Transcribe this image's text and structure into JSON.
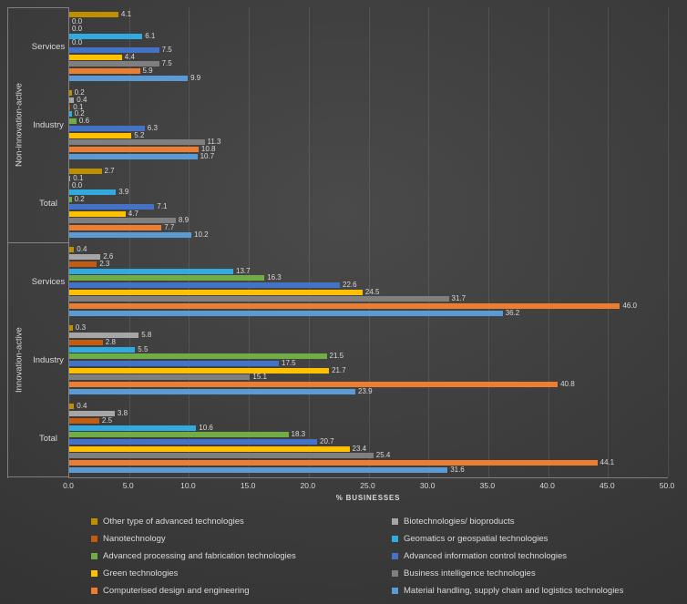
{
  "window": {
    "background": "#3b3b3b",
    "text_color": "#d9d9d9"
  },
  "chart_data": {
    "type": "bar",
    "orientation": "horizontal",
    "title": "",
    "xlabel": "% BUSINESSES",
    "ylabel": "",
    "xlim": [
      0,
      50
    ],
    "x_ticks": [
      "0.0",
      "5.0",
      "10.0",
      "15.0",
      "20.0",
      "25.0",
      "30.0",
      "35.0",
      "40.0",
      "45.0",
      "50.0"
    ],
    "grid": true,
    "legend_position": "bottom",
    "data_labels": true,
    "category_groups": [
      {
        "label": "Non-innovation-active",
        "categories": [
          "Services",
          "Industry",
          "Total"
        ]
      },
      {
        "label": "Innovation-active",
        "categories": [
          "Services",
          "Industry",
          "Total"
        ]
      }
    ],
    "category_order_note": "values arrays are ordered: Non-innovation-active Services, Industry, Total, then Innovation-active Services, Industry, Total; bars drawn top-to-bottom in series order within each category",
    "series": [
      {
        "name": "Other type of advanced technologies",
        "color": "#BF8F00",
        "values": [
          4.1,
          0.2,
          2.7,
          0.4,
          0.3,
          0.4
        ]
      },
      {
        "name": "Biotechnologies/ bioproducts",
        "color": "#A6A6A6",
        "values": [
          0.0,
          0.4,
          0.1,
          2.6,
          5.8,
          3.8
        ]
      },
      {
        "name": "Nanotechnology",
        "color": "#C55A11",
        "values": [
          0.0,
          0.1,
          0.0,
          2.3,
          2.8,
          2.5
        ]
      },
      {
        "name": "Geomatics or geospatial technologies",
        "color": "#31AADF",
        "values": [
          6.1,
          0.2,
          3.9,
          13.7,
          5.5,
          10.6
        ]
      },
      {
        "name": "Advanced processing and fabrication technologies",
        "color": "#70AD47",
        "values": [
          0.0,
          0.6,
          0.2,
          16.3,
          21.5,
          18.3
        ]
      },
      {
        "name": "Advanced information control technologies",
        "color": "#4472C4",
        "values": [
          7.5,
          6.3,
          7.1,
          22.6,
          17.5,
          20.7
        ]
      },
      {
        "name": "Green technologies",
        "color": "#FFC000",
        "values": [
          4.4,
          5.2,
          4.7,
          24.5,
          21.7,
          23.4
        ]
      },
      {
        "name": "Business intelligence technologies",
        "color": "#7F7F7F",
        "values": [
          7.5,
          11.3,
          8.9,
          31.7,
          15.1,
          25.4
        ]
      },
      {
        "name": "Computerised design and engineering",
        "color": "#ED7D31",
        "values": [
          5.9,
          10.8,
          7.7,
          46.0,
          40.8,
          44.1
        ]
      },
      {
        "name": "Material handling, supply chain and logistics technologies",
        "color": "#5B9BD5",
        "values": [
          9.9,
          10.7,
          10.2,
          36.2,
          23.9,
          31.6
        ]
      }
    ]
  }
}
